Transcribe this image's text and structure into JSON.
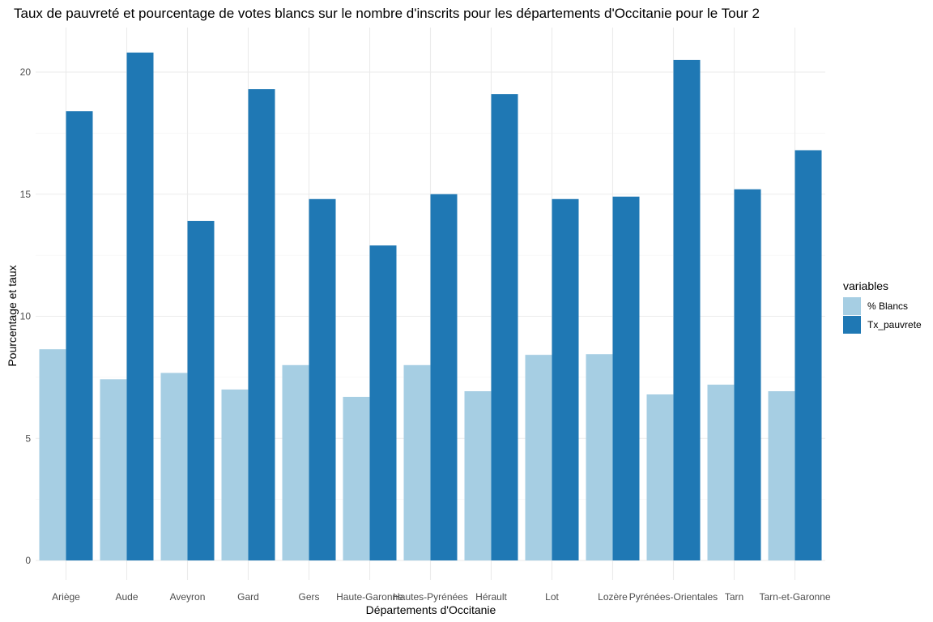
{
  "chart_data": {
    "type": "bar",
    "title": "Taux de pauvreté et pourcentage de votes blancs sur le nombre d'inscrits pour les départements d'Occitanie pour le Tour 2",
    "xlabel": "Départements d'Occitanie",
    "ylabel": "Pourcentage et taux",
    "ylim": [
      0,
      20.8
    ],
    "yticks": [
      0,
      5,
      10,
      15,
      20
    ],
    "grid": true,
    "legend": {
      "title": "variables",
      "position": "right"
    },
    "categories": [
      "Ariège",
      "Aude",
      "Aveyron",
      "Gard",
      "Gers",
      "Haute-Garonne",
      "Hautes-Pyrénées",
      "Hérault",
      "Lot",
      "Lozère",
      "Pyrénées-Orientales",
      "Tarn",
      "Tarn-et-Garonne"
    ],
    "series": [
      {
        "name": "% Blancs",
        "color": "#a6cee3",
        "values": [
          8.65,
          7.42,
          7.68,
          7.0,
          8.0,
          6.7,
          8.0,
          6.93,
          8.42,
          8.45,
          6.8,
          7.2,
          6.93
        ]
      },
      {
        "name": "Tx_pauvrete",
        "color": "#1f78b4",
        "values": [
          18.4,
          20.8,
          13.9,
          19.3,
          14.8,
          12.9,
          15.0,
          19.1,
          14.8,
          14.9,
          20.5,
          15.2,
          16.8
        ]
      }
    ]
  }
}
